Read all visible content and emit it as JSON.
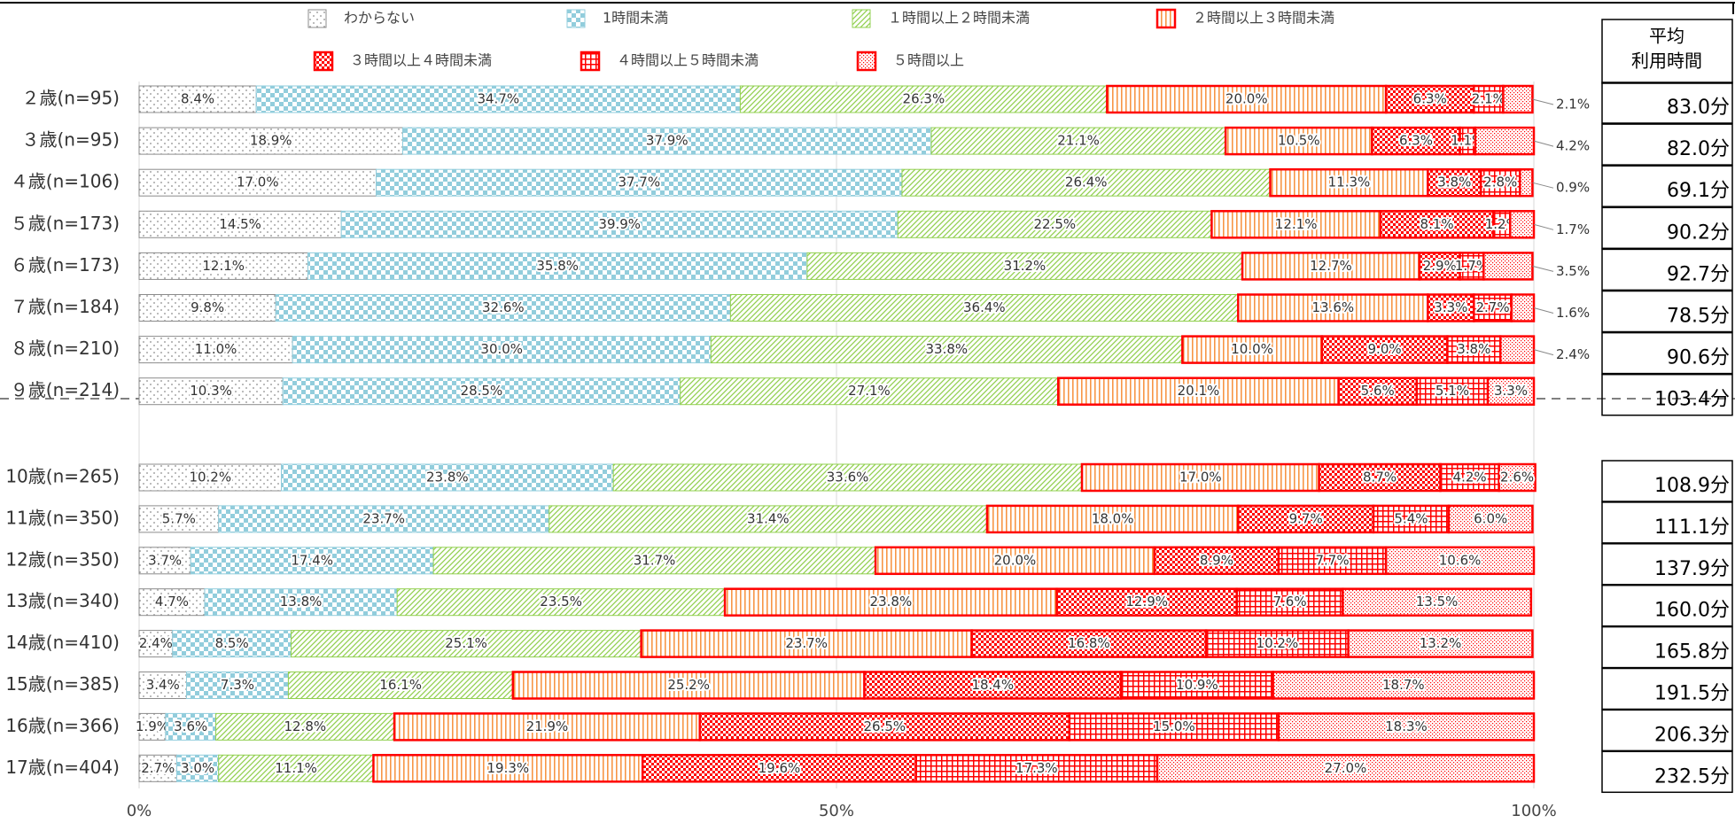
{
  "chart_data": {
    "type": "bar",
    "orientation": "horizontal",
    "stacked": true,
    "categories": [
      "２歳(n=95)",
      "３歳(n=95)",
      "４歳(n=106)",
      "５歳(n=173)",
      "６歳(n=173)",
      "７歳(n=184)",
      "８歳(n=210)",
      "９歳(n=214)",
      "10歳(n=265)",
      "11歳(n=350)",
      "12歳(n=350)",
      "13歳(n=340)",
      "14歳(n=410)",
      "15歳(n=385)",
      "16歳(n=366)",
      "17歳(n=404)"
    ],
    "series": [
      {
        "name": "わからない",
        "color": "#8c8c8c",
        "pattern": "dots",
        "values": [
          8.4,
          18.9,
          17.0,
          14.5,
          12.1,
          9.8,
          11.0,
          10.3,
          10.2,
          5.7,
          3.7,
          4.7,
          2.4,
          3.4,
          1.9,
          2.7
        ],
        "value_labels": [
          "8.4%",
          "18.9%",
          "17.0%",
          "14.5%",
          "12.1%",
          "9.8%",
          "11.0%",
          "10.3%",
          "10.2%",
          "5.7%",
          "3.7%",
          "4.7%",
          "2.4%",
          "3.4%",
          "1.9%",
          "2.7%"
        ]
      },
      {
        "name": "1時間未満",
        "color": "#92cddc",
        "pattern": "checker",
        "values": [
          34.7,
          37.9,
          37.7,
          39.9,
          35.8,
          32.6,
          30.0,
          28.5,
          23.8,
          23.7,
          17.4,
          13.8,
          8.5,
          7.3,
          3.6,
          3.0
        ],
        "value_labels": [
          "34.7%",
          "37.9%",
          "37.7%",
          "39.9%",
          "35.8%",
          "32.6%",
          "30.0%",
          "28.5%",
          "23.8%",
          "23.7%",
          "17.4%",
          "13.8%",
          "8.5%",
          "7.3%",
          "3.6%",
          "3.0%"
        ]
      },
      {
        "name": "１時間以上２時間未満",
        "color": "#92d050",
        "pattern": "diagonal",
        "values": [
          26.3,
          21.1,
          26.4,
          22.5,
          31.2,
          36.4,
          33.8,
          27.1,
          33.6,
          31.4,
          31.7,
          23.5,
          25.1,
          16.1,
          12.8,
          11.1
        ],
        "value_labels": [
          "26.3%",
          "21.1%",
          "26.4%",
          "22.5%",
          "31.2%",
          "36.4%",
          "33.8%",
          "27.1%",
          "33.6%",
          "31.4%",
          "31.7%",
          "23.5%",
          "25.1%",
          "16.1%",
          "12.8%",
          "11.1%"
        ]
      },
      {
        "name": "２時間以上３時間未満",
        "color": "#f79646",
        "border": "#ff0000",
        "pattern": "vstripes",
        "values": [
          20.0,
          10.5,
          11.3,
          12.1,
          12.7,
          13.6,
          10.0,
          20.1,
          17.0,
          18.0,
          20.0,
          23.8,
          23.7,
          25.2,
          21.9,
          19.3
        ],
        "value_labels": [
          "20.0%",
          "10.5%",
          "11.3%",
          "12.1%",
          "12.7%",
          "13.6%",
          "10.0%",
          "20.1%",
          "17.0%",
          "18.0%",
          "20.0%",
          "23.8%",
          "23.7%",
          "25.2%",
          "21.9%",
          "19.3%"
        ]
      },
      {
        "name": "３時間以上４時間未満",
        "color": "#ff0000",
        "pattern": "checker",
        "values": [
          6.3,
          6.3,
          3.8,
          8.1,
          2.9,
          3.3,
          9.0,
          5.6,
          8.7,
          9.7,
          8.9,
          12.9,
          16.8,
          18.4,
          26.5,
          19.6
        ],
        "value_labels": [
          "6.3%",
          "6.3%",
          "3.8%",
          "8.1%",
          "2.9%",
          "3.3%",
          "9.0%",
          "5.6%",
          "8.7%",
          "9.7%",
          "8.9%",
          "12.9%",
          "16.8%",
          "18.4%",
          "26.5%",
          "19.6%"
        ]
      },
      {
        "name": "４時間以上５時間未満",
        "color": "#ff0000",
        "pattern": "grid",
        "values": [
          2.1,
          1.1,
          2.8,
          1.2,
          1.7,
          2.7,
          3.8,
          5.1,
          4.2,
          5.4,
          7.7,
          7.6,
          10.2,
          10.9,
          15.0,
          17.3
        ],
        "value_labels": [
          "2.1%",
          "1.1%",
          "2.8%",
          "1.2%",
          "1.7%",
          "2.7%",
          "3.8%",
          "5.1%",
          "4.2%",
          "5.4%",
          "7.7%",
          "7.6%",
          "10.2%",
          "10.9%",
          "15.0%",
          "17.3%"
        ]
      },
      {
        "name": "５時間以上",
        "color": "#ff0000",
        "pattern": "finedots",
        "values": [
          2.1,
          4.2,
          0.9,
          1.7,
          3.5,
          1.6,
          2.4,
          3.3,
          2.6,
          6.0,
          10.6,
          13.5,
          13.2,
          18.7,
          18.3,
          27.0
        ],
        "value_labels": [
          "2.1%",
          "4.2%",
          "0.9%",
          "1.7%",
          "3.5%",
          "1.6%",
          "2.4%",
          "3.3%",
          "2.6%",
          "6.0%",
          "10.6%",
          "13.5%",
          "13.2%",
          "18.7%",
          "18.3%",
          "27.0%"
        ]
      }
    ],
    "xlim": [
      0,
      100
    ],
    "xticks": [
      {
        "value": 0,
        "label": "0%"
      },
      {
        "value": 50,
        "label": "50%"
      },
      {
        "value": 100,
        "label": "100%"
      }
    ],
    "grid": true,
    "average_title": [
      "平均",
      "利用時間"
    ],
    "averages": [
      "83.0分",
      "82.0分",
      "69.1分",
      "90.2分",
      "92.7分",
      "78.5分",
      "90.6分",
      "103.4分",
      "108.9分",
      "111.1分",
      "137.9分",
      "160.0分",
      "165.8分",
      "191.5分",
      "206.3分",
      "232.5分"
    ]
  }
}
